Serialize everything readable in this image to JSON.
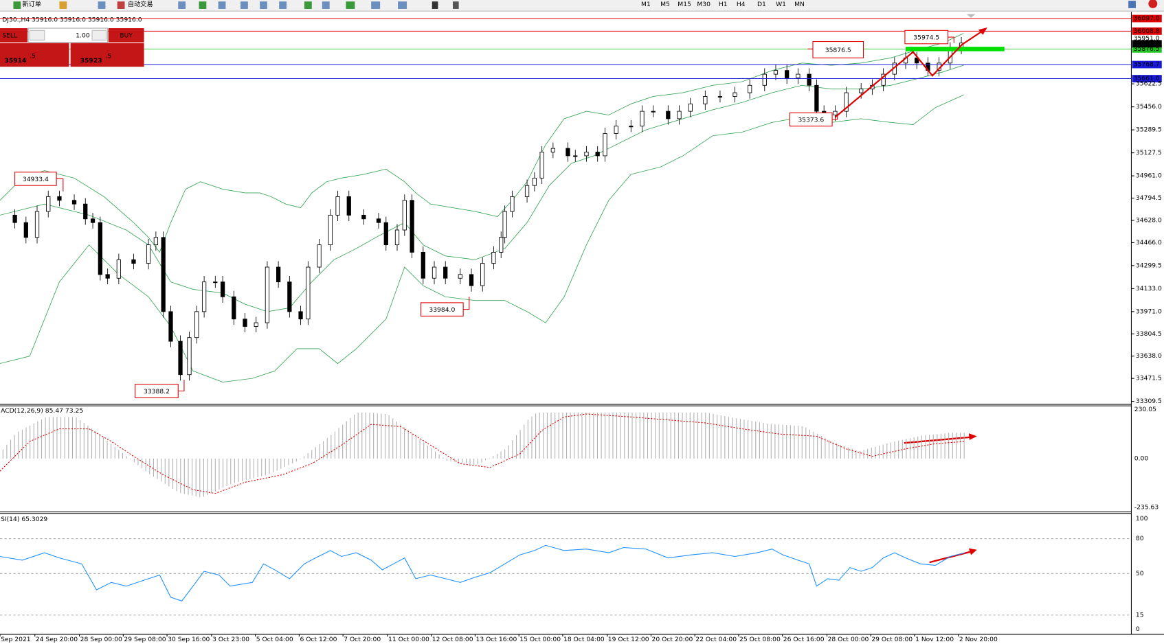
{
  "toolbar": {
    "buttons": [
      "新订单",
      "自动交易"
    ],
    "timeframes": [
      "M1",
      "M5",
      "M15",
      "M30",
      "H1",
      "H4",
      "D1",
      "W1",
      "MN"
    ]
  },
  "chart": {
    "header": "DJ30.,H4 35916.0 35916.0 35916.0 35916.0",
    "trade_panel": {
      "sell": "SELL",
      "lot": "1.00",
      "buy": "BUY",
      "bid": "35914",
      "bid_fraction": ".5",
      "ask": "35923",
      "ask_fraction": ".5"
    },
    "price_scale": [
      "35622.5",
      "35456.0",
      "35289.5",
      "35127.5",
      "34961.0",
      "34794.5",
      "34628.0",
      "34466.0",
      "34299.5",
      "34133.0",
      "33971.0",
      "33804.5",
      "33638.0",
      "33471.5",
      "33309.5"
    ],
    "levels": [
      {
        "label": "36097.0",
        "color": "#e00000"
      },
      {
        "label": "36008.8",
        "color": "#e00000"
      },
      {
        "label": "35876.5",
        "color": "#22c422"
      },
      {
        "label": "35768.7",
        "color": "#1a1adc"
      },
      {
        "label": "35661.0",
        "color": "#1a1adc"
      }
    ],
    "current_prices": [
      "35951.0",
      "35916.0"
    ],
    "annotations": [
      "34933.4",
      "33984.0",
      "33388.2",
      "35373.6",
      "35876.5",
      "35974.5"
    ],
    "dates": [
      "Sep 2021",
      "24 Sep 20:00",
      "28 Sep 00:00",
      "29 Sep 08:00",
      "30 Sep 16:00",
      "3 Oct 23:00",
      "5 Oct 04:00",
      "6 Oct 12:00",
      "7 Oct 20:00",
      "11 Oct 00:00",
      "12 Oct 08:00",
      "13 Oct 16:00",
      "15 Oct 00:00",
      "18 Oct 04:00",
      "19 Oct 12:00",
      "20 Oct 20:00",
      "22 Oct 04:00",
      "25 Oct 08:00",
      "26 Oct 16:00",
      "28 Oct 00:00",
      "29 Oct 08:00",
      "1 Nov 12:00",
      "2 Nov 20:00"
    ]
  },
  "macd": {
    "header": "ACD(12,26,9) 85.47 73.25",
    "scale": [
      "230.05",
      "0.00",
      "-235.63"
    ]
  },
  "rsi": {
    "header": "SI(14) 65.3029",
    "scale": [
      "100",
      "80",
      "50",
      "15",
      "0"
    ]
  }
}
